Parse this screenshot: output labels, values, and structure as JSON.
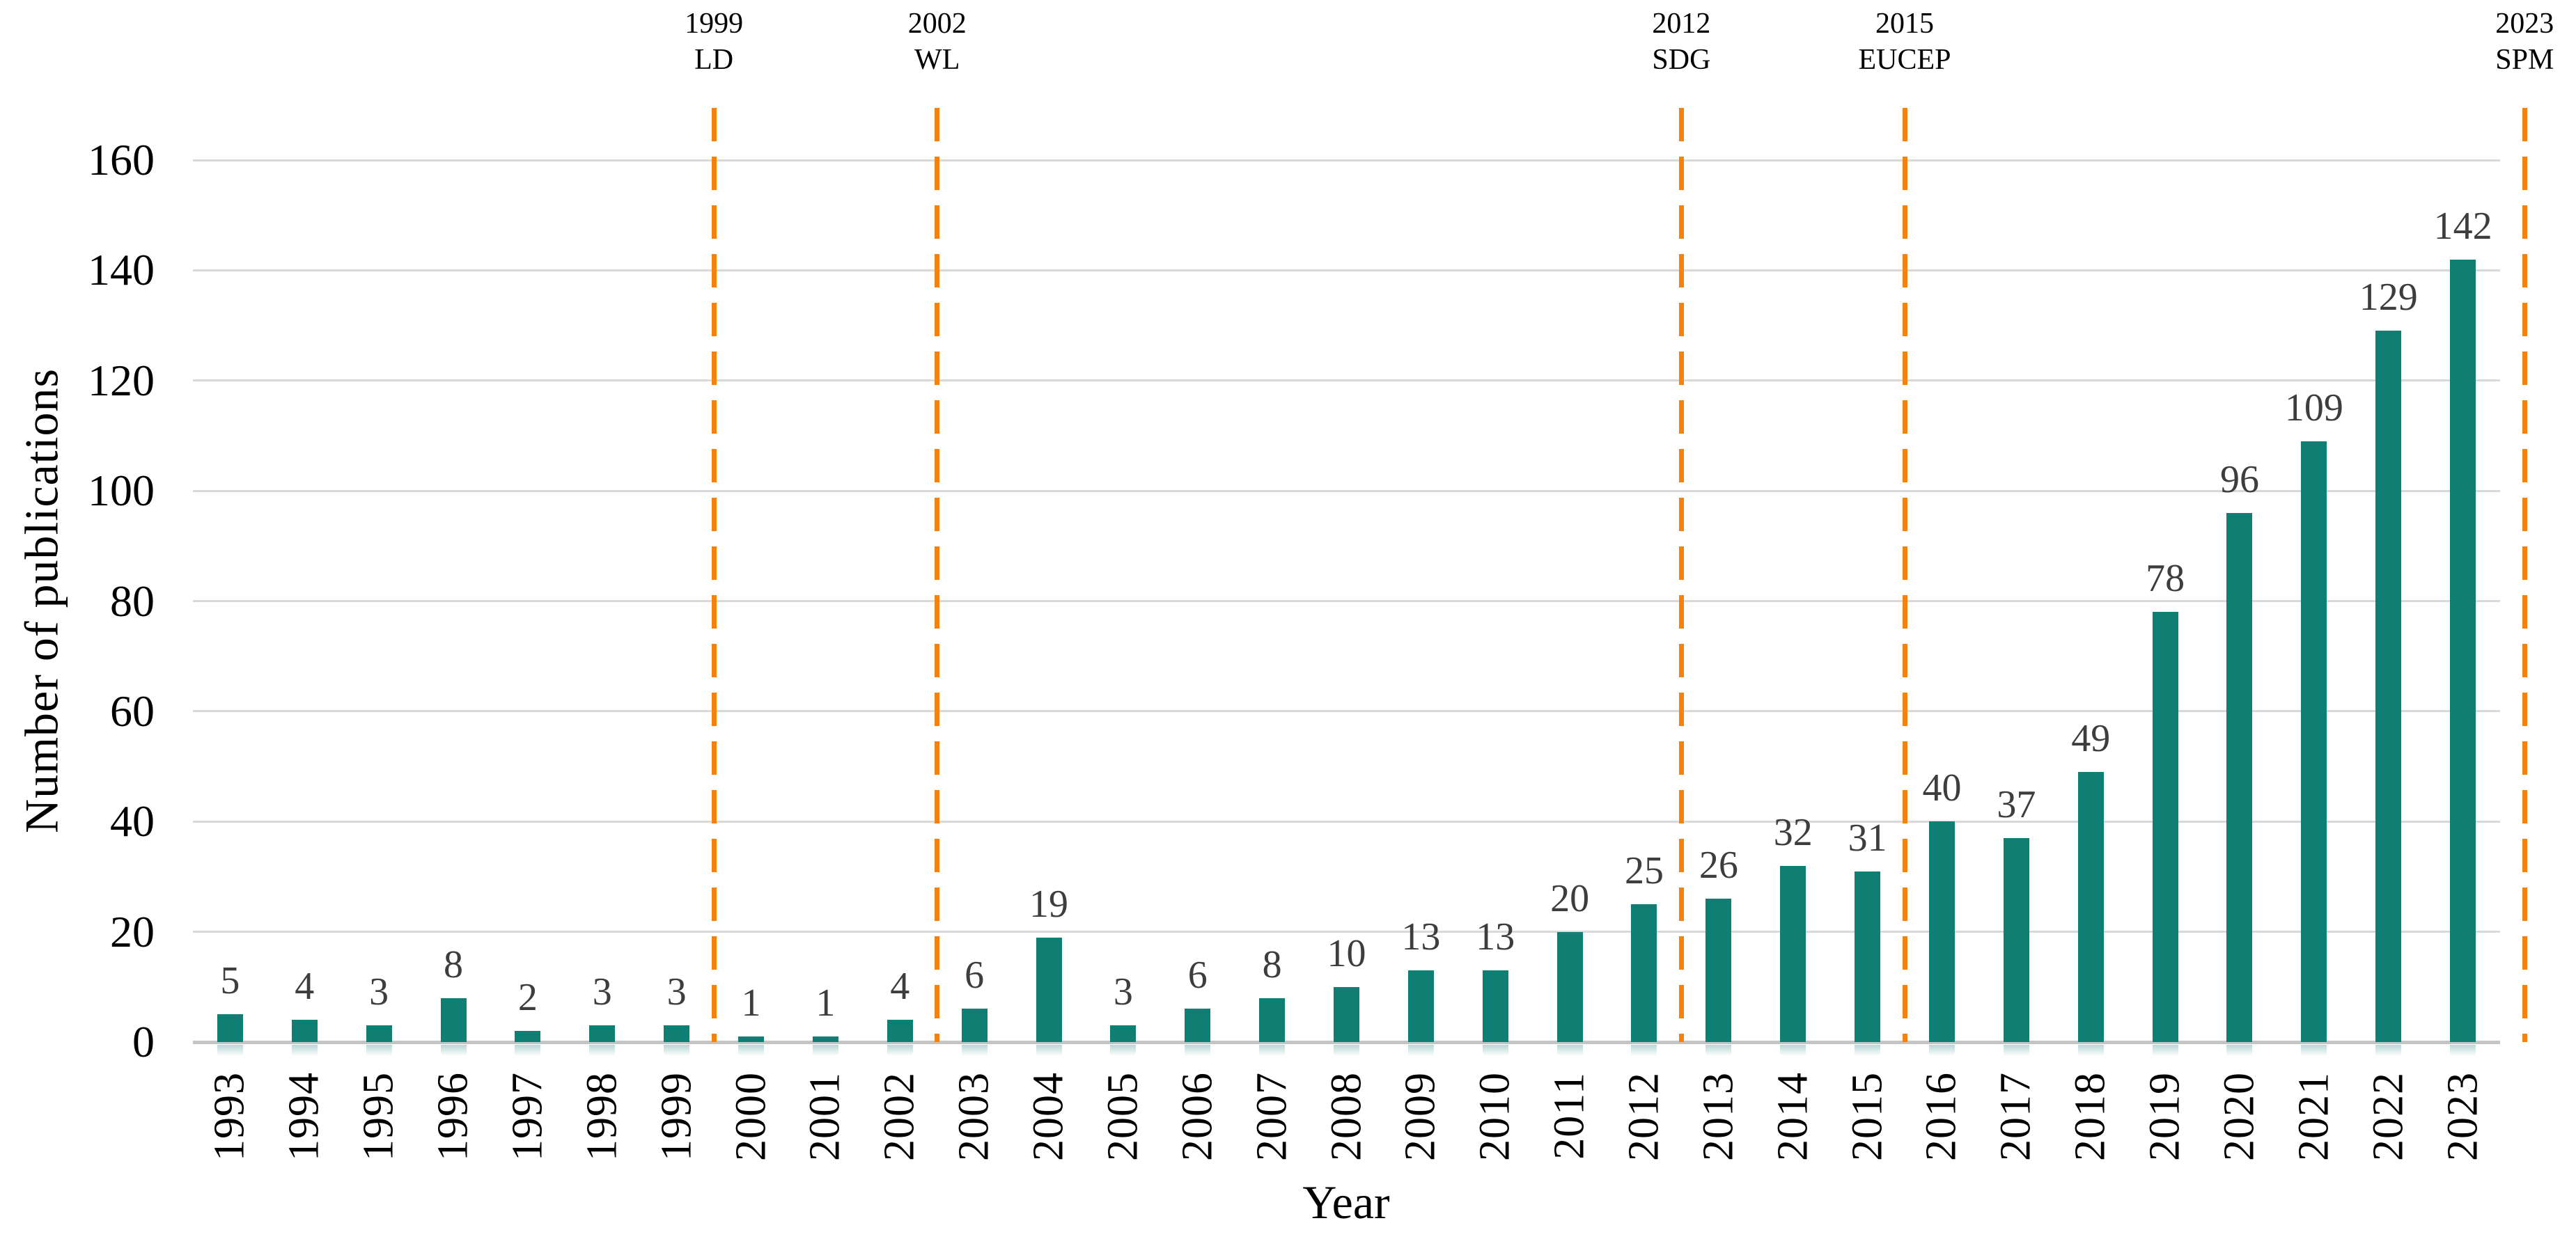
{
  "chart_data": {
    "type": "bar",
    "title": "",
    "xlabel": "Year",
    "ylabel": "Number of publications",
    "ylim": [
      0,
      160
    ],
    "yticks": [
      0,
      20,
      40,
      60,
      80,
      100,
      120,
      140,
      160
    ],
    "grid": "horizontal",
    "legend_position": "none",
    "categories": [
      "1993",
      "1994",
      "1995",
      "1996",
      "1997",
      "1998",
      "1999",
      "2000",
      "2001",
      "2002",
      "2003",
      "2004",
      "2005",
      "2006",
      "2007",
      "2008",
      "2009",
      "2010",
      "2011",
      "2012",
      "2013",
      "2014",
      "2015",
      "2016",
      "2017",
      "2018",
      "2019",
      "2020",
      "2021",
      "2022",
      "2023"
    ],
    "values": [
      5,
      4,
      3,
      8,
      2,
      3,
      3,
      1,
      1,
      4,
      6,
      19,
      3,
      6,
      8,
      10,
      13,
      13,
      20,
      25,
      26,
      32,
      31,
      40,
      37,
      49,
      78,
      96,
      109,
      129,
      142
    ],
    "events": [
      {
        "year": "1999",
        "label": "LD"
      },
      {
        "year": "2002",
        "label": "WL"
      },
      {
        "year": "2012",
        "label": "SDG"
      },
      {
        "year": "2015",
        "label": "EUCEP"
      },
      {
        "year": "2023",
        "label": "SPM"
      }
    ],
    "colors": {
      "bar": "#0E7F72",
      "event_line": "#F5820D",
      "value_label": "#3D3D3D",
      "gridline": "#D9D9D9",
      "axis_line": "#C4C4C4",
      "tick_label": "#000000"
    }
  }
}
